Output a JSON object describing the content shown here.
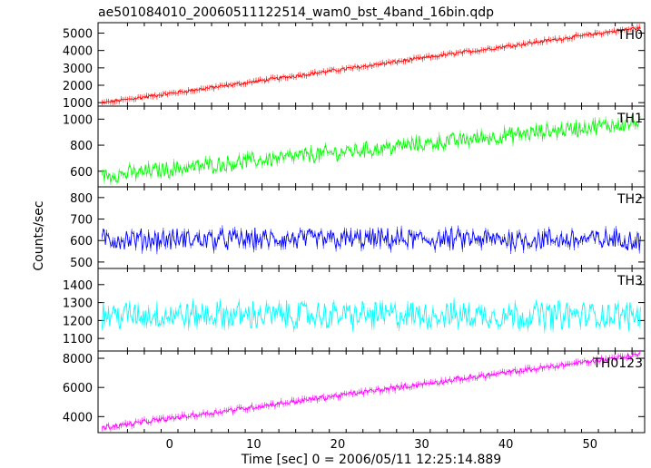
{
  "chart_data": {
    "type": "line",
    "title": "ae501084010_20060511122514_wam0_bst_4band_16bin.qdp",
    "xlabel": "Time [sec] 0 = 2006/05/11 12:25:14.889",
    "ylabel": "Counts/sec",
    "xlim": [
      -8.5,
      56.5
    ],
    "xticks": [
      0,
      10,
      20,
      30,
      40,
      50
    ],
    "panels": [
      {
        "name": "TH0",
        "color": "#ff0000",
        "ylim": [
          800,
          5600
        ],
        "yticks": [
          1000,
          2000,
          3000,
          4000,
          5000
        ],
        "trend": {
          "start": 950,
          "end": 5350,
          "noise": 90
        }
      },
      {
        "name": "TH1",
        "color": "#00ff00",
        "ylim": [
          480,
          1100
        ],
        "yticks": [
          600,
          800,
          1000
        ],
        "trend": {
          "start": 560,
          "end": 980,
          "noise": 55
        }
      },
      {
        "name": "TH2",
        "color": "#0000ff",
        "ylim": [
          470,
          850
        ],
        "yticks": [
          500,
          600,
          700,
          800
        ],
        "trend": {
          "start": 605,
          "end": 605,
          "noise": 45
        }
      },
      {
        "name": "TH3",
        "color": "#00ffff",
        "ylim": [
          1030,
          1490
        ],
        "yticks": [
          1100,
          1200,
          1300,
          1400
        ],
        "trend": {
          "start": 1230,
          "end": 1230,
          "noise": 70
        }
      },
      {
        "name": "TH0123",
        "color": "#ff00ff",
        "ylim": [
          2900,
          8500
        ],
        "yticks": [
          4000,
          6000,
          8000
        ],
        "trend": {
          "start": 3200,
          "end": 8300,
          "noise": 160
        }
      }
    ]
  }
}
